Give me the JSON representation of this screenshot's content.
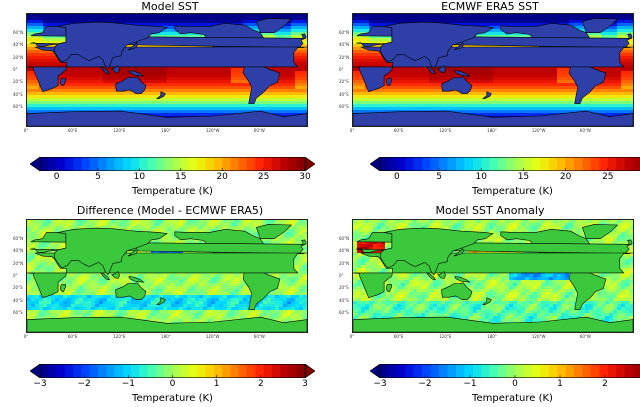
{
  "lat_labels": [
    "60°N",
    "40°N",
    "20°N",
    "0°",
    "20°S",
    "40°S",
    "60°S"
  ],
  "lon_labels": [
    "0°",
    "60°E",
    "120°E",
    "180°",
    "120°W",
    "60°W"
  ],
  "colors": {
    "jet": [
      "#000080",
      "#0000d0",
      "#0040ff",
      "#0090ff",
      "#00d8ff",
      "#40ffb8",
      "#a0ff58",
      "#e8ff10",
      "#ffc000",
      "#ff7000",
      "#ff2000",
      "#c00000",
      "#800000"
    ],
    "land": "#3cc83c"
  },
  "chart_data": [
    {
      "type": "heatmap",
      "title": "Model SST",
      "colorbar": {
        "label": "Temperature (K)",
        "ticks": [
          "0",
          "5",
          "10",
          "15",
          "20",
          "25",
          "30"
        ],
        "range": [
          -2,
          30
        ],
        "extend": "both"
      },
      "field": "sst",
      "grid": false
    },
    {
      "type": "heatmap",
      "title": "ECMWF ERA5 SST",
      "colorbar": {
        "label": "Temperature (K)",
        "ticks": [
          "0",
          "5",
          "10",
          "15",
          "20",
          "25"
        ],
        "range": [
          -2,
          30
        ],
        "extend": "both"
      },
      "field": "sst",
      "grid": false
    },
    {
      "type": "heatmap",
      "title": "Difference (Model - ECMWF ERA5)",
      "colorbar": {
        "label": "Temperature (K)",
        "ticks": [
          "−3",
          "−2",
          "−1",
          "0",
          "1",
          "2",
          "3"
        ],
        "range": [
          -3,
          3
        ],
        "extend": "both"
      },
      "field": "diff",
      "grid": false
    },
    {
      "type": "heatmap",
      "title": "Model SST Anomaly",
      "colorbar": {
        "label": "Temperature (K)",
        "ticks": [
          "−3",
          "−2",
          "−1",
          "0",
          "1",
          "2"
        ],
        "range": [
          -3,
          3
        ],
        "extend": "both"
      },
      "field": "anom",
      "grid": false
    }
  ]
}
